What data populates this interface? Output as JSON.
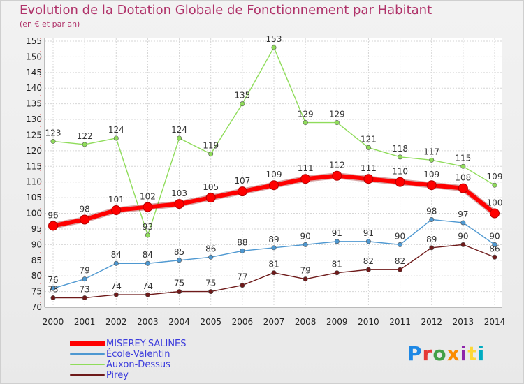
{
  "title": "Evolution de la Dotation Globale de Fonctionnement par Habitant",
  "subtitle": "(en € et par an)",
  "logo": {
    "text": "Proxiti",
    "colors": [
      "#1e88e5",
      "#e53935",
      "#43a047",
      "#fb8c00",
      "#8e24aa",
      "#fdd835",
      "#00acc1"
    ]
  },
  "chart_data": {
    "type": "line",
    "title": "Evolution de la Dotation Globale de Fonctionnement par Habitant",
    "subtitle": "(en € et par an)",
    "x": [
      "2000",
      "2001",
      "2002",
      "2003",
      "2004",
      "2005",
      "2006",
      "2007",
      "2008",
      "2009",
      "2010",
      "2011",
      "2012",
      "2013",
      "2014"
    ],
    "ylim": [
      70,
      155
    ],
    "yticks": [
      70,
      75,
      80,
      85,
      90,
      95,
      100,
      105,
      110,
      115,
      120,
      125,
      130,
      135,
      140,
      145,
      150,
      155
    ],
    "grid": true,
    "legend_position": "bottom-left",
    "series": [
      {
        "name": "MISEREY-SALINES",
        "color": "#ff0000",
        "values": [
          96,
          98,
          101,
          102,
          103,
          105,
          107,
          109,
          111,
          112,
          111,
          110,
          109,
          108,
          100
        ]
      },
      {
        "name": "École-Valentin",
        "color": "#4e98d1",
        "values": [
          76,
          79,
          84,
          84,
          85,
          86,
          88,
          89,
          90,
          91,
          91,
          90,
          98,
          97,
          90
        ]
      },
      {
        "name": "Auxon-Dessus",
        "color": "#8fdc5a",
        "values": [
          123,
          122,
          124,
          93,
          124,
          119,
          135,
          153,
          129,
          129,
          121,
          118,
          117,
          115,
          109
        ]
      },
      {
        "name": "Pirey",
        "color": "#6e1a1a",
        "values": [
          73,
          73,
          74,
          74,
          75,
          75,
          77,
          81,
          79,
          81,
          82,
          82,
          89,
          90,
          86
        ]
      }
    ]
  }
}
